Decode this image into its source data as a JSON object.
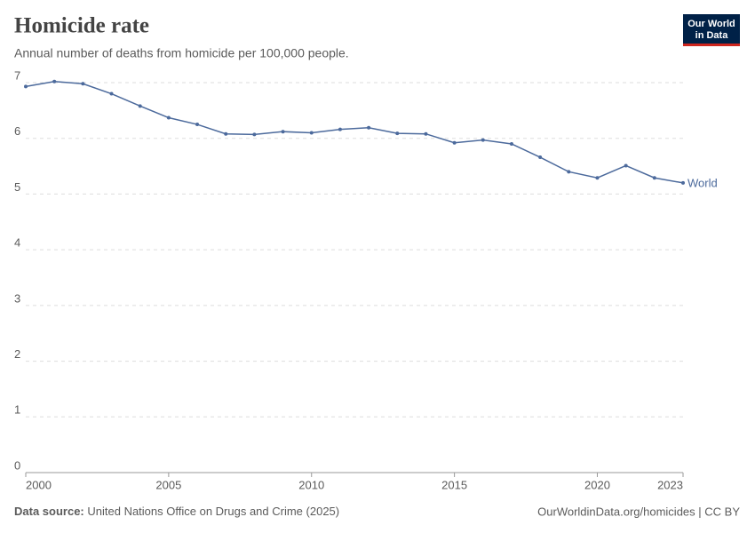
{
  "chart_data": {
    "type": "line",
    "title": "Homicide rate",
    "subtitle": "Annual number of deaths from homicide per 100,000 people.",
    "logo": [
      "Our World",
      "in Data"
    ],
    "source_label": "Data source:",
    "source": "United Nations Office on Drugs and Crime (2025)",
    "footer_url": "OurWorldinData.org/homicides | CC BY",
    "x": [
      2000,
      2001,
      2002,
      2003,
      2004,
      2005,
      2006,
      2007,
      2008,
      2009,
      2010,
      2011,
      2012,
      2013,
      2014,
      2015,
      2016,
      2017,
      2018,
      2019,
      2020,
      2021,
      2022,
      2023
    ],
    "series": [
      {
        "name": "World",
        "color": "#4c6a9c",
        "values": [
          6.93,
          7.02,
          6.98,
          6.8,
          6.58,
          6.37,
          6.25,
          6.08,
          6.07,
          6.12,
          6.1,
          6.16,
          6.19,
          6.09,
          6.08,
          5.92,
          5.97,
          5.9,
          5.66,
          5.4,
          5.29,
          5.51,
          5.29,
          5.2
        ]
      }
    ],
    "xlim": [
      2000,
      2023
    ],
    "xticks": [
      2000,
      2005,
      2010,
      2015,
      2020,
      2023
    ],
    "ylim": [
      0,
      7
    ],
    "yticks": [
      0,
      1,
      2,
      3,
      4,
      5,
      6,
      7
    ],
    "grid": true
  }
}
